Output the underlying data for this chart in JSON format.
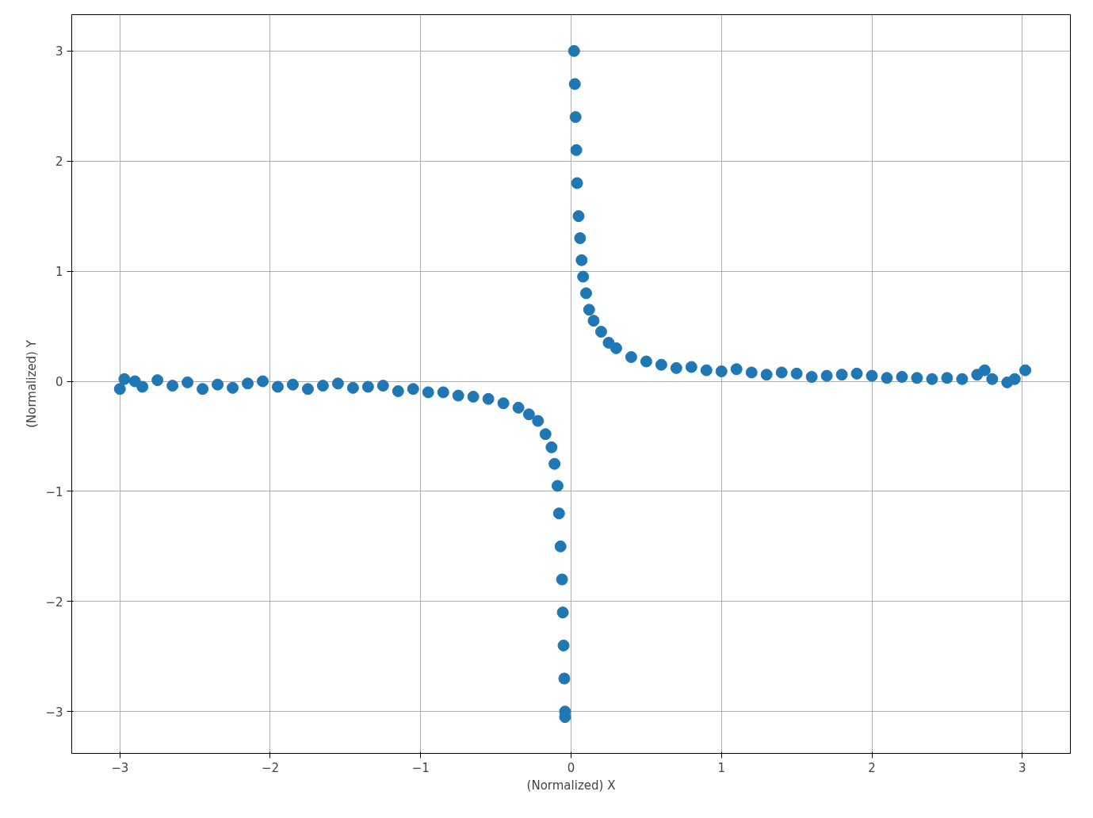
{
  "chart_data": {
    "type": "scatter",
    "xlabel": "(Normalized) X",
    "ylabel": "(Normalized) Y",
    "xlim": [
      -3.32,
      3.32
    ],
    "ylim": [
      -3.38,
      3.33
    ],
    "xticks": [
      -3,
      -2,
      -1,
      0,
      1,
      2,
      3
    ],
    "yticks": [
      -3,
      -2,
      -1,
      0,
      1,
      2,
      3
    ],
    "grid": true,
    "marker": "circle",
    "series": [
      {
        "color": "#1f77b4",
        "x": [
          -3.0,
          -2.97,
          -2.9,
          -2.85,
          -2.75,
          -2.65,
          -2.55,
          -2.45,
          -2.35,
          -2.25,
          -2.15,
          -2.05,
          -1.95,
          -1.85,
          -1.75,
          -1.65,
          -1.55,
          -1.45,
          -1.35,
          -1.25,
          -1.15,
          -1.05,
          -0.95,
          -0.85,
          -0.75,
          -0.65,
          -0.55,
          -0.45,
          -0.35,
          -0.28,
          -0.22,
          -0.17,
          -0.13,
          -0.11,
          -0.09,
          -0.08,
          -0.07,
          -0.06,
          -0.055,
          -0.05,
          -0.045,
          -0.04,
          -0.04,
          0.02,
          0.025,
          0.03,
          0.035,
          0.04,
          0.05,
          0.06,
          0.07,
          0.08,
          0.1,
          0.12,
          0.15,
          0.2,
          0.25,
          0.3,
          0.4,
          0.5,
          0.6,
          0.7,
          0.8,
          0.9,
          1.0,
          1.1,
          1.2,
          1.3,
          1.4,
          1.5,
          1.6,
          1.7,
          1.8,
          1.9,
          2.0,
          2.1,
          2.2,
          2.3,
          2.4,
          2.5,
          2.6,
          2.7,
          2.75,
          2.8,
          2.9,
          2.95,
          3.02
        ],
        "values": [
          -0.07,
          0.02,
          0.0,
          -0.05,
          0.01,
          -0.04,
          -0.01,
          -0.07,
          -0.03,
          -0.06,
          -0.02,
          0.0,
          -0.05,
          -0.03,
          -0.07,
          -0.04,
          -0.02,
          -0.06,
          -0.05,
          -0.04,
          -0.09,
          -0.07,
          -0.1,
          -0.1,
          -0.13,
          -0.14,
          -0.16,
          -0.2,
          -0.24,
          -0.3,
          -0.36,
          -0.48,
          -0.6,
          -0.75,
          -0.95,
          -1.2,
          -1.5,
          -1.8,
          -2.1,
          -2.4,
          -2.7,
          -3.0,
          -3.05,
          3.0,
          2.7,
          2.4,
          2.1,
          1.8,
          1.5,
          1.3,
          1.1,
          0.95,
          0.8,
          0.65,
          0.55,
          0.45,
          0.35,
          0.3,
          0.22,
          0.18,
          0.15,
          0.12,
          0.13,
          0.1,
          0.09,
          0.11,
          0.08,
          0.06,
          0.08,
          0.07,
          0.04,
          0.05,
          0.06,
          0.07,
          0.05,
          0.03,
          0.04,
          0.03,
          0.02,
          0.03,
          0.02,
          0.06,
          0.1,
          0.02,
          -0.01,
          0.02,
          0.1
        ]
      }
    ]
  }
}
